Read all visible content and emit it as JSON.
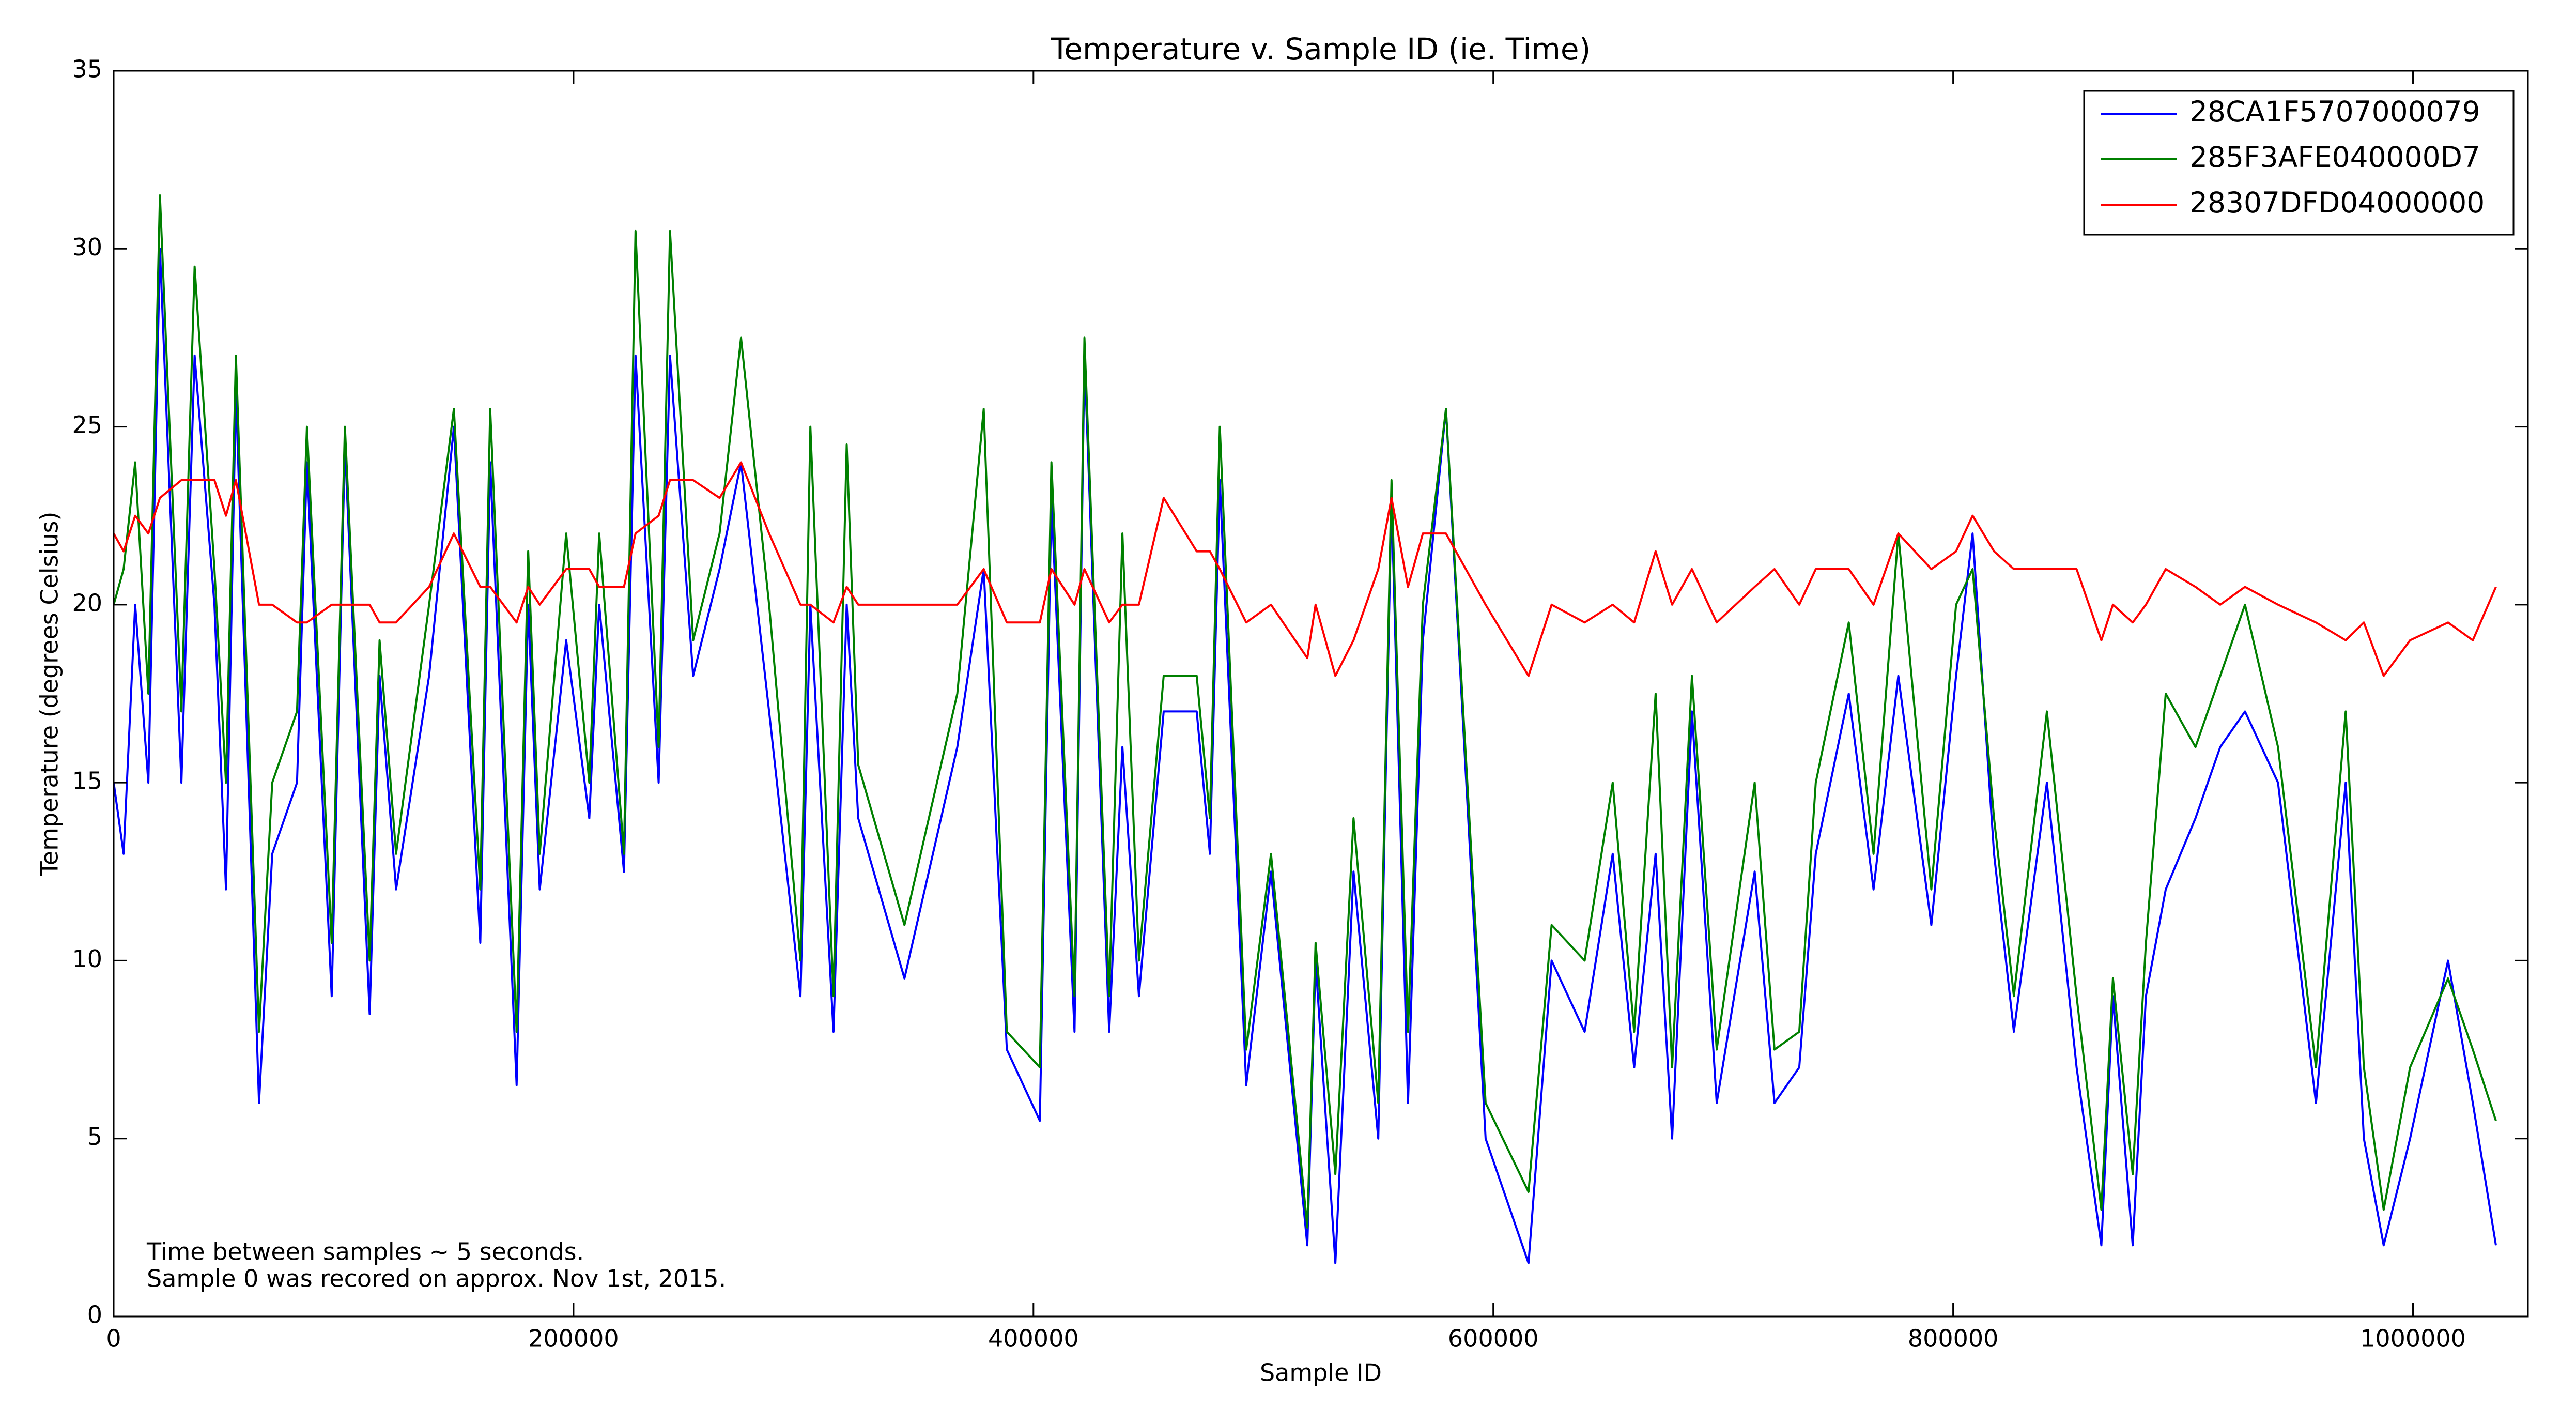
{
  "chart_data": {
    "type": "line",
    "title": "Temperature v. Sample ID (ie. Time)",
    "x_label": "Sample ID",
    "y_label": "Temperature (degrees Celsius)",
    "annotations": [
      "Time between samples ~ 5 seconds.",
      "Sample 0 was recored on approx. Nov 1st, 2015."
    ],
    "x": [
      0,
      4310,
      9340,
      15080,
      20110,
      29450,
      35200,
      43820,
      48840,
      53150,
      63210,
      68960,
      79730,
      84040,
      94810,
      100560,
      111330,
      115640,
      122820,
      137180,
      147950,
      159440,
      163750,
      175240,
      180270,
      185300,
      196800,
      206850,
      211160,
      221930,
      226950,
      237010,
      241950,
      252020,
      263510,
      272840,
      285050,
      298690,
      303000,
      313050,
      318800,
      323820,
      343920,
      366900,
      378390,
      388440,
      402800,
      407830,
      417880,
      422190,
      432960,
      438710,
      445890,
      456660,
      471020,
      476760,
      481070,
      492560,
      503330,
      519130,
      522720,
      531330,
      539230,
      549990,
      555740,
      562920,
      569380,
      579430,
      596670,
      615330,
      625380,
      639740,
      651940,
      661280,
      670610,
      677790,
      686410,
      697180,
      713690,
      722310,
      733080,
      740260,
      754620,
      765390,
      776160,
      790520,
      801290,
      808470,
      817800,
      826420,
      840780,
      853700,
      864470,
      869500,
      878110,
      883850,
      892470,
      905400,
      916170,
      926940,
      941300,
      957810,
      970740,
      978640,
      987250,
      998740,
      1015250,
      1026020,
      1036070
    ],
    "series": [
      {
        "name": "28CA1F5707000079",
        "color": "#0000ff",
        "values": [
          15,
          13,
          20,
          15,
          30,
          15,
          27,
          20,
          12,
          26,
          6,
          13,
          15,
          24,
          9,
          24.5,
          8.5,
          18,
          12,
          18,
          25,
          10.5,
          24,
          6.5,
          20,
          12,
          19,
          14,
          20,
          12.5,
          27,
          15,
          27,
          18,
          21,
          24,
          17,
          9,
          20,
          8,
          20,
          14,
          9.5,
          16,
          21,
          7.5,
          5.5,
          23,
          8,
          27,
          8,
          16,
          9,
          17,
          17,
          13,
          23.5,
          6.5,
          12.5,
          2,
          10,
          1.5,
          12.5,
          5,
          23,
          6,
          19,
          25.5,
          5,
          1.5,
          10,
          8,
          13,
          7,
          13,
          5,
          17,
          6,
          12.5,
          6,
          7,
          13,
          17.5,
          12,
          18,
          11,
          18,
          22,
          13,
          8,
          15,
          7,
          2,
          9,
          2,
          9,
          12,
          14,
          16,
          17,
          15,
          6,
          15,
          5,
          2,
          5,
          10,
          6,
          2
        ]
      },
      {
        "name": "285F3AFE040000D7",
        "color": "#008000",
        "values": [
          20,
          21,
          24,
          17.5,
          31.5,
          17,
          29.5,
          21,
          15,
          27,
          8,
          15,
          17,
          25,
          10.5,
          25,
          10,
          19,
          13,
          20,
          25.5,
          12,
          25.5,
          8,
          21.5,
          13,
          22,
          15,
          22,
          13,
          30.5,
          16,
          30.5,
          19,
          22,
          27.5,
          20,
          10,
          25,
          9,
          24.5,
          15.5,
          11,
          17.5,
          25.5,
          8,
          7,
          24,
          9,
          27.5,
          9,
          22,
          10,
          18,
          18,
          14,
          25,
          7.5,
          13,
          2.5,
          10.5,
          4,
          14,
          6,
          23.5,
          8,
          20,
          25.5,
          6,
          3.5,
          11,
          10,
          15,
          8,
          17.5,
          7,
          18,
          7.5,
          15,
          7.5,
          8,
          15,
          19.5,
          13,
          22,
          12,
          20,
          21,
          14,
          9,
          17,
          9,
          3,
          9.5,
          4,
          10.5,
          17.5,
          16,
          18,
          20,
          16,
          7,
          17,
          7,
          3,
          7,
          9.5,
          7.5,
          5.5
        ]
      },
      {
        "name": "28307DFD04000000",
        "color": "#ff0000",
        "values": [
          22,
          21.5,
          22.5,
          22,
          23,
          23.5,
          23.5,
          23.5,
          22.5,
          23.5,
          20,
          20,
          19.5,
          19.5,
          20,
          20,
          20,
          19.5,
          19.5,
          20.5,
          22,
          20.5,
          20.5,
          19.5,
          20.5,
          20,
          21,
          21,
          20.5,
          20.5,
          22,
          22.5,
          23.5,
          23.5,
          23,
          24,
          22,
          20,
          20,
          19.5,
          20.5,
          20,
          20,
          20,
          21,
          19.5,
          19.5,
          21,
          20,
          21,
          19.5,
          20,
          20,
          23,
          21.5,
          21.5,
          21,
          19.5,
          20,
          18.5,
          20,
          18,
          19,
          21,
          23,
          20.5,
          22,
          22,
          20,
          18,
          20,
          19.5,
          20,
          19.5,
          21.5,
          20,
          21,
          19.5,
          20.5,
          21,
          20,
          21,
          21,
          20,
          22,
          21,
          21.5,
          22.5,
          21.5,
          21,
          21,
          21,
          19,
          20,
          19.5,
          20,
          21,
          20.5,
          20,
          20.5,
          20,
          19.5,
          19,
          19.5,
          18,
          19,
          19.5,
          19,
          20.5
        ]
      }
    ],
    "xlim": [
      0,
      1050000
    ],
    "xticks": [
      0,
      200000,
      400000,
      600000,
      800000,
      1000000
    ],
    "ylim": [
      0,
      35
    ],
    "yticks": [
      0,
      5,
      10,
      15,
      20,
      25,
      30,
      35
    ],
    "legend": "upper right"
  }
}
